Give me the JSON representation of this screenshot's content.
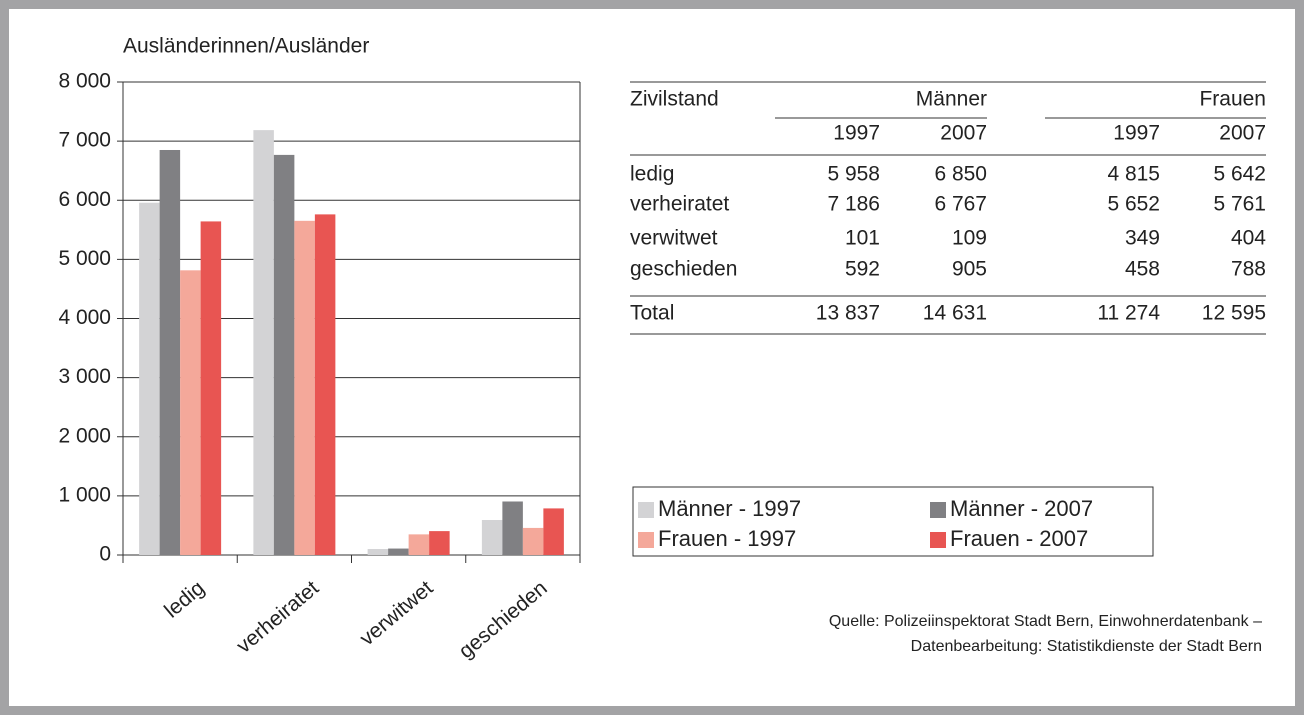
{
  "chart_data": {
    "type": "bar",
    "y_label": "Ausländerinnen/Ausländer",
    "categories": [
      "ledig",
      "verheiratet",
      "verwitwet",
      "geschieden"
    ],
    "series": [
      {
        "name": "Männer - 1997",
        "color": "#d3d3d5",
        "values": [
          5958,
          7186,
          101,
          592
        ]
      },
      {
        "name": "Männer - 2007",
        "color": "#808083",
        "values": [
          6850,
          6767,
          109,
          905
        ]
      },
      {
        "name": "Frauen - 1997",
        "color": "#f4a89a",
        "values": [
          4815,
          5652,
          349,
          458
        ]
      },
      {
        "name": "Frauen - 2007",
        "color": "#e85552",
        "values": [
          5642,
          5761,
          404,
          788
        ]
      }
    ],
    "ylim": [
      0,
      8000
    ],
    "yticks": [
      0,
      {
        "value": 1000,
        "label": "1 000"
      },
      {
        "value": 2000,
        "label": "2 000"
      },
      {
        "value": 3000,
        "label": "3 000"
      },
      {
        "value": 4000,
        "label": "4 000"
      },
      {
        "value": 5000,
        "label": "5 000"
      },
      {
        "value": 6000,
        "label": "6 000"
      },
      {
        "value": 7000,
        "label": "7 000"
      },
      {
        "value": 8000,
        "label": "8 000"
      }
    ],
    "grid": true
  },
  "table": {
    "header": [
      "Zivilstand",
      "Männer",
      "Frauen"
    ],
    "years": [
      "1997",
      "2007",
      "1997",
      "2007"
    ],
    "rows": [
      [
        "ledig",
        "5 958",
        "6 850",
        "4 815",
        "5 642"
      ],
      [
        "verheiratet",
        "7 186",
        "6 767",
        "5 652",
        "5 761"
      ],
      [
        "verwitwet",
        "101",
        "109",
        "349",
        "404"
      ],
      [
        "geschieden",
        "592",
        "905",
        "458",
        "788"
      ]
    ],
    "total": [
      "Total",
      "13 837",
      "14 631",
      "11 274",
      "12 595"
    ]
  },
  "source": [
    "Quelle: Polizeiinspektorat Stadt Bern, Einwohnerdatenbank –",
    "Datenbearbeitung: Statistikdienste der Stadt Bern"
  ]
}
